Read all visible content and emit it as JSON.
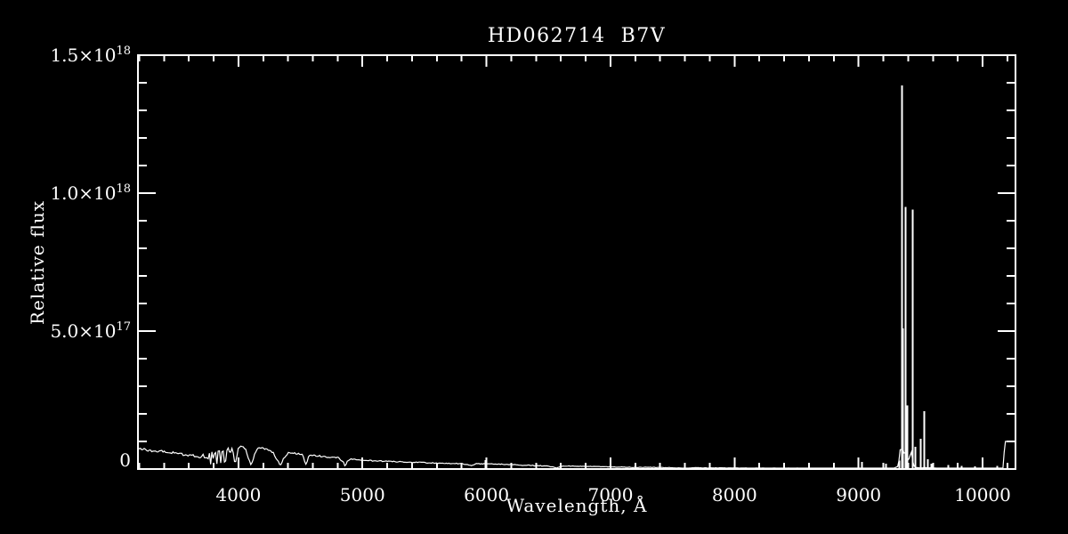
{
  "chart_data": {
    "type": "line",
    "title": "HD062714  B7V",
    "xlabel": "Wavelength, Å",
    "ylabel": "Relative flux",
    "background_color": "#000000",
    "foreground_color": "#ffffff",
    "xlim": [
      3190,
      10265
    ],
    "flux_unit_scale": "1e17",
    "ylim_e17": [
      0,
      15
    ],
    "x_major_ticks": [
      4000,
      5000,
      6000,
      7000,
      8000,
      9000,
      10000
    ],
    "x_minor_step": 200,
    "y_major_ticks_e17": [
      0,
      5,
      10,
      15
    ],
    "y_tick_labels": [
      "0",
      "5.0×10^17",
      "1.0×10^18",
      "1.5×10^18"
    ],
    "y_minor_step_e17": 1,
    "grid": false,
    "legend": false,
    "continuum_e17": [
      [
        3190,
        0.72
      ],
      [
        3260,
        0.69
      ],
      [
        3330,
        0.65
      ],
      [
        3400,
        0.62
      ],
      [
        3470,
        0.58
      ],
      [
        3540,
        0.54
      ],
      [
        3610,
        0.5
      ],
      [
        3670,
        0.46
      ],
      [
        3705,
        0.44
      ],
      [
        3720,
        0.55
      ],
      [
        3730,
        0.25
      ],
      [
        3742,
        0.6
      ],
      [
        3752,
        0.18
      ],
      [
        3764,
        0.7
      ],
      [
        3776,
        0.15
      ],
      [
        3790,
        0.8
      ],
      [
        3800,
        0.15
      ],
      [
        3812,
        0.84
      ],
      [
        3826,
        0.12
      ],
      [
        3842,
        0.86
      ],
      [
        3858,
        0.15
      ],
      [
        3872,
        0.82
      ],
      [
        3892,
        0.1
      ],
      [
        3912,
        0.85
      ],
      [
        3932,
        0.6
      ],
      [
        3952,
        0.75
      ],
      [
        3972,
        0.12
      ],
      [
        4000,
        0.8
      ],
      [
        4030,
        0.84
      ],
      [
        4060,
        0.7
      ],
      [
        4085,
        0.3
      ],
      [
        4105,
        0.15
      ],
      [
        4130,
        0.55
      ],
      [
        4160,
        0.78
      ],
      [
        4200,
        0.76
      ],
      [
        4240,
        0.68
      ],
      [
        4280,
        0.6
      ],
      [
        4315,
        0.3
      ],
      [
        4340,
        0.12
      ],
      [
        4365,
        0.4
      ],
      [
        4400,
        0.58
      ],
      [
        4440,
        0.6
      ],
      [
        4480,
        0.55
      ],
      [
        4520,
        0.5
      ],
      [
        4548,
        0.1
      ],
      [
        4565,
        0.48
      ],
      [
        4600,
        0.5
      ],
      [
        4650,
        0.47
      ],
      [
        4700,
        0.45
      ],
      [
        4760,
        0.42
      ],
      [
        4810,
        0.4
      ],
      [
        4845,
        0.25
      ],
      [
        4861,
        0.1
      ],
      [
        4880,
        0.3
      ],
      [
        4910,
        0.36
      ],
      [
        4960,
        0.34
      ],
      [
        5020,
        0.32
      ],
      [
        5080,
        0.3
      ],
      [
        5140,
        0.29
      ],
      [
        5200,
        0.28
      ],
      [
        5260,
        0.27
      ],
      [
        5320,
        0.26
      ],
      [
        5380,
        0.25
      ],
      [
        5440,
        0.24
      ],
      [
        5500,
        0.23
      ],
      [
        5560,
        0.22
      ],
      [
        5620,
        0.21
      ],
      [
        5680,
        0.21
      ],
      [
        5740,
        0.2
      ],
      [
        5800,
        0.2
      ],
      [
        5876,
        0.12
      ],
      [
        5920,
        0.19
      ],
      [
        6000,
        0.19
      ],
      [
        6060,
        0.18
      ],
      [
        6120,
        0.17
      ],
      [
        6180,
        0.16
      ],
      [
        6240,
        0.15
      ],
      [
        6300,
        0.14
      ],
      [
        6360,
        0.13
      ],
      [
        6420,
        0.12
      ],
      [
        6480,
        0.11
      ],
      [
        6530,
        0.08
      ],
      [
        6563,
        0.03
      ],
      [
        6600,
        0.1
      ],
      [
        6660,
        0.11
      ],
      [
        6720,
        0.1
      ],
      [
        6780,
        0.1
      ],
      [
        6840,
        0.09
      ],
      [
        6900,
        0.09
      ],
      [
        6960,
        0.08
      ],
      [
        7020,
        0.08
      ],
      [
        7080,
        0.07
      ],
      [
        7140,
        0.07
      ],
      [
        7180,
        0.05
      ],
      [
        7220,
        0.06
      ],
      [
        7280,
        0.06
      ],
      [
        7340,
        0.06
      ],
      [
        7400,
        0.055
      ],
      [
        7460,
        0.05
      ],
      [
        7520,
        0.05
      ],
      [
        7590,
        0.02
      ],
      [
        7640,
        0.045
      ],
      [
        7700,
        0.045
      ],
      [
        7760,
        0.04
      ],
      [
        7820,
        0.04
      ],
      [
        7880,
        0.04
      ],
      [
        7940,
        0.038
      ],
      [
        8000,
        0.036
      ],
      [
        8100,
        0.034
      ],
      [
        8200,
        0.032
      ],
      [
        8300,
        0.03
      ],
      [
        8400,
        0.029
      ],
      [
        8500,
        0.028
      ],
      [
        8600,
        0.026
      ],
      [
        8700,
        0.025
      ],
      [
        8800,
        0.024
      ],
      [
        8900,
        0.023
      ],
      [
        9000,
        0.022
      ],
      [
        9100,
        0.021
      ],
      [
        9200,
        0.021
      ],
      [
        9280,
        0.022
      ],
      [
        9320,
        0.1
      ],
      [
        9332,
        0.55
      ],
      [
        9340,
        0.92
      ],
      [
        9348,
        0.6
      ],
      [
        9356,
        0.8
      ],
      [
        9364,
        0.55
      ],
      [
        9372,
        0.7
      ],
      [
        9382,
        0.4
      ],
      [
        9392,
        0.3
      ],
      [
        9404,
        0.35
      ],
      [
        9416,
        0.5
      ],
      [
        9426,
        0.62
      ],
      [
        9436,
        0.3
      ],
      [
        9446,
        0.12
      ],
      [
        9460,
        0.06
      ],
      [
        9500,
        0.04
      ],
      [
        9540,
        0.05
      ],
      [
        9580,
        0.04
      ],
      [
        9640,
        0.03
      ],
      [
        9700,
        0.028
      ],
      [
        9760,
        0.026
      ],
      [
        9820,
        0.025
      ],
      [
        9880,
        0.024
      ],
      [
        9940,
        0.023
      ],
      [
        10000,
        0.022
      ],
      [
        10060,
        0.022
      ],
      [
        10120,
        0.022
      ],
      [
        10165,
        0.03
      ],
      [
        10180,
        1.0
      ],
      [
        10265,
        1.0
      ]
    ],
    "spikes_e17": [
      [
        5988,
        0.32
      ],
      [
        9022,
        0.26
      ],
      [
        9216,
        0.2
      ],
      [
        9324,
        0.3
      ],
      [
        9346,
        13.9
      ],
      [
        9357,
        5.1
      ],
      [
        9374,
        9.5
      ],
      [
        9389,
        2.3
      ],
      [
        9432,
        9.4
      ],
      [
        9453,
        0.8
      ],
      [
        9496,
        1.1
      ],
      [
        9525,
        2.1
      ],
      [
        9554,
        0.35
      ],
      [
        9583,
        0.2
      ],
      [
        9719,
        0.15
      ],
      [
        9827,
        0.12
      ],
      [
        9934,
        0.1
      ],
      [
        10114,
        0.12
      ]
    ],
    "noise_segments_e17": [
      [
        3190,
        3705,
        0.05
      ],
      [
        3705,
        4000,
        0.04
      ],
      [
        4000,
        4861,
        0.03
      ],
      [
        4861,
        5600,
        0.018
      ],
      [
        5600,
        6500,
        0.014
      ],
      [
        6500,
        7600,
        0.01
      ],
      [
        7600,
        9300,
        0.008
      ],
      [
        9460,
        10165,
        0.006
      ]
    ]
  }
}
